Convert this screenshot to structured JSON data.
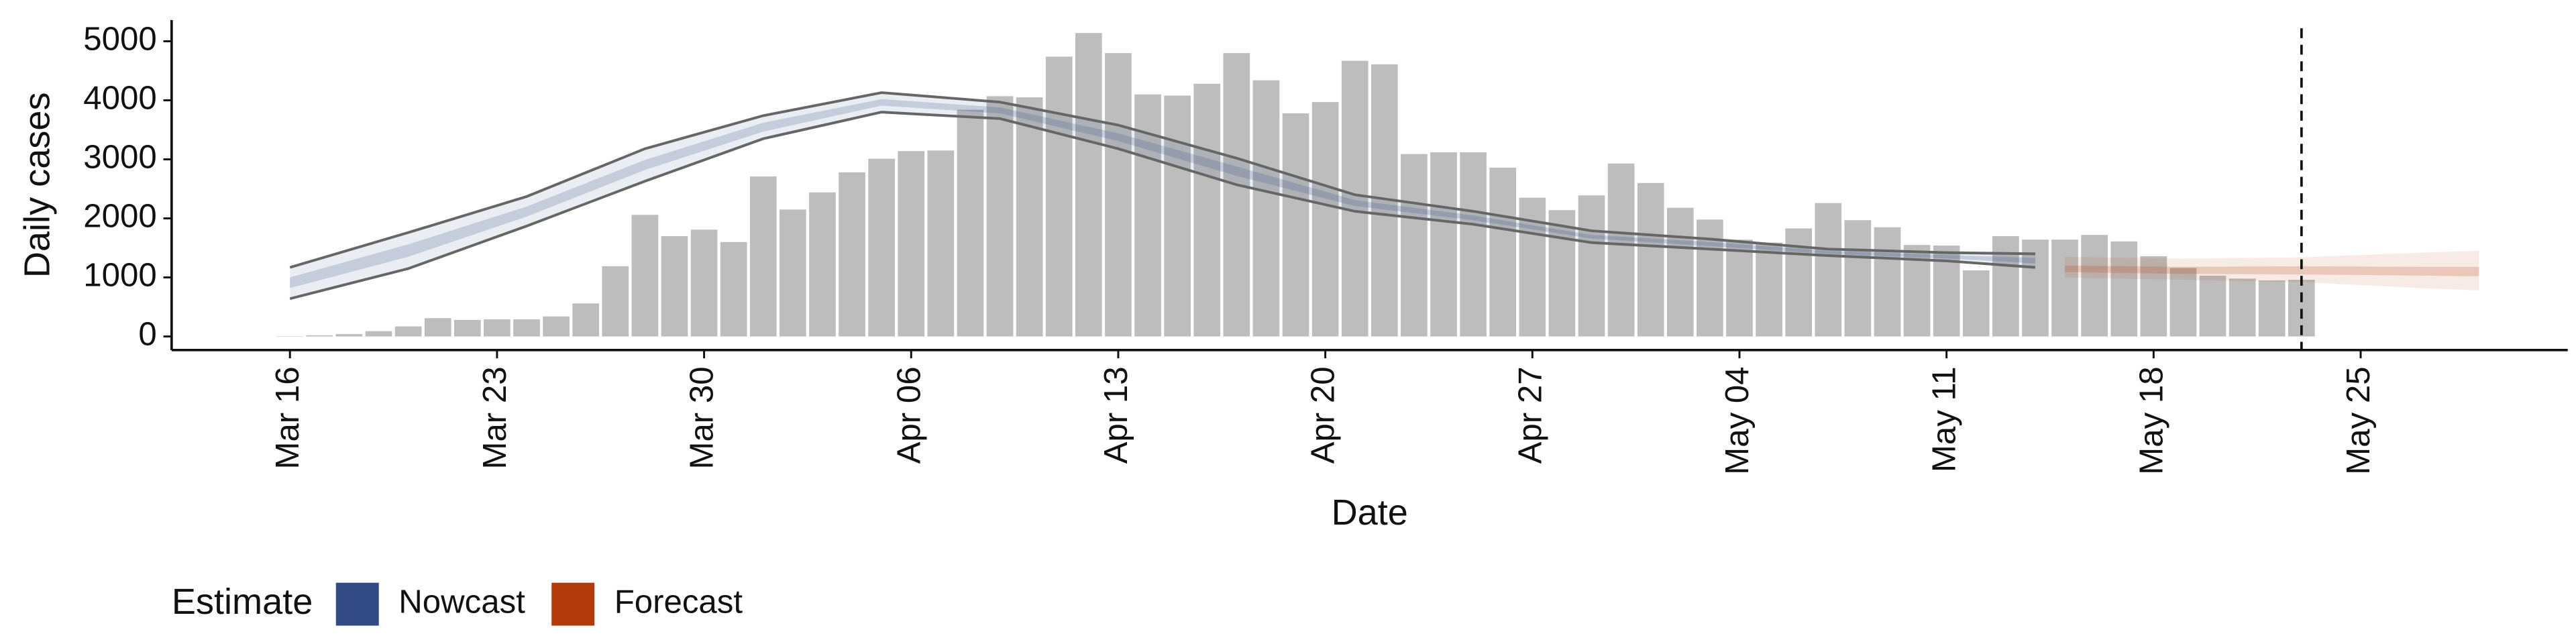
{
  "chart_data": {
    "type": "bar",
    "y_label": "Daily cases",
    "x_label": "Date",
    "x": [
      "03-16",
      "03-17",
      "03-18",
      "03-19",
      "03-20",
      "03-21",
      "03-22",
      "03-23",
      "03-24",
      "03-25",
      "03-26",
      "03-27",
      "03-28",
      "03-29",
      "03-30",
      "03-31",
      "04-01",
      "04-02",
      "04-03",
      "04-04",
      "04-05",
      "04-06",
      "04-07",
      "04-08",
      "04-09",
      "04-10",
      "04-11",
      "04-12",
      "04-13",
      "04-14",
      "04-15",
      "04-16",
      "04-17",
      "04-18",
      "04-19",
      "04-20",
      "04-21",
      "04-22",
      "04-23",
      "04-24",
      "04-25",
      "04-26",
      "04-27",
      "04-28",
      "04-29",
      "04-30",
      "05-01",
      "05-02",
      "05-03",
      "05-04",
      "05-05",
      "05-06",
      "05-07",
      "05-08",
      "05-09",
      "05-10",
      "05-11",
      "05-12",
      "05-13",
      "05-14",
      "05-15",
      "05-16",
      "05-17",
      "05-18",
      "05-19",
      "05-20",
      "05-21",
      "05-22",
      "05-23"
    ],
    "values": [
      5,
      20,
      40,
      90,
      170,
      310,
      280,
      290,
      290,
      340,
      560,
      1190,
      2060,
      1700,
      1810,
      1600,
      2710,
      2150,
      2440,
      2780,
      3010,
      3140,
      3150,
      3840,
      4070,
      4050,
      4740,
      5140,
      4800,
      4100,
      4080,
      4280,
      4800,
      4340,
      3780,
      3970,
      4670,
      4610,
      3090,
      3120,
      3120,
      2860,
      2350,
      2140,
      2390,
      2930,
      2600,
      2180,
      1980,
      1640,
      1590,
      1830,
      2260,
      1970,
      1850,
      1550,
      1540,
      1120,
      1700,
      1640,
      1640,
      1720,
      1610,
      1360,
      1160,
      1030,
      980,
      950,
      960
    ],
    "color": "#bdbdbd",
    "ylim": [
      -230,
      5360
    ],
    "yticks": [
      0,
      1000,
      2000,
      3000,
      4000,
      5000
    ],
    "xlim": [
      "03-12",
      "06-01"
    ],
    "xticks": [
      {
        "value": "03-16",
        "label": "Mar 16"
      },
      {
        "value": "03-23",
        "label": "Mar 23"
      },
      {
        "value": "03-30",
        "label": "Mar 30"
      },
      {
        "value": "04-06",
        "label": "Apr 06"
      },
      {
        "value": "04-13",
        "label": "Apr 13"
      },
      {
        "value": "04-20",
        "label": "Apr 20"
      },
      {
        "value": "04-27",
        "label": "Apr 27"
      },
      {
        "value": "05-04",
        "label": "May 04"
      },
      {
        "value": "05-11",
        "label": "May 11"
      },
      {
        "value": "05-18",
        "label": "May 18"
      },
      {
        "value": "05-25",
        "label": "May 25"
      }
    ],
    "vline": "05-23",
    "legend_title": "Estimate",
    "estimates": [
      {
        "name": "Nowcast",
        "color": "#324b84",
        "outline": true,
        "x": [
          "03-16",
          "03-20",
          "03-24",
          "03-28",
          "04-01",
          "04-05",
          "04-09",
          "04-13",
          "04-17",
          "04-21",
          "04-25",
          "04-29",
          "05-03",
          "05-07",
          "05-11",
          "05-14"
        ],
        "upper_90": [
          1170,
          1760,
          2370,
          3180,
          3740,
          4130,
          3970,
          3580,
          3020,
          2400,
          2120,
          1790,
          1650,
          1480,
          1420,
          1400
        ],
        "lower_90": [
          640,
          1150,
          1870,
          2630,
          3350,
          3800,
          3690,
          3180,
          2570,
          2120,
          1900,
          1590,
          1480,
          1370,
          1280,
          1170
        ],
        "upper_50": [
          1000,
          1560,
          2200,
          2990,
          3620,
          4020,
          3880,
          3440,
          2880,
          2310,
          2050,
          1720,
          1600,
          1450,
          1380,
          1330
        ],
        "lower_50": [
          820,
          1350,
          2030,
          2820,
          3470,
          3910,
          3780,
          3310,
          2720,
          2210,
          1970,
          1660,
          1530,
          1400,
          1320,
          1240
        ]
      },
      {
        "name": "Forecast",
        "color": "#b33a0a",
        "outline": false,
        "x": [
          "05-15",
          "05-19",
          "05-23",
          "05-27",
          "05-29"
        ],
        "upper_90": [
          1350,
          1320,
          1340,
          1420,
          1450
        ],
        "lower_90": [
          1000,
          960,
          920,
          820,
          780
        ],
        "upper_50": [
          1200,
          1180,
          1190,
          1180,
          1180
        ],
        "lower_50": [
          1090,
          1060,
          1050,
          1030,
          1020
        ]
      }
    ]
  }
}
